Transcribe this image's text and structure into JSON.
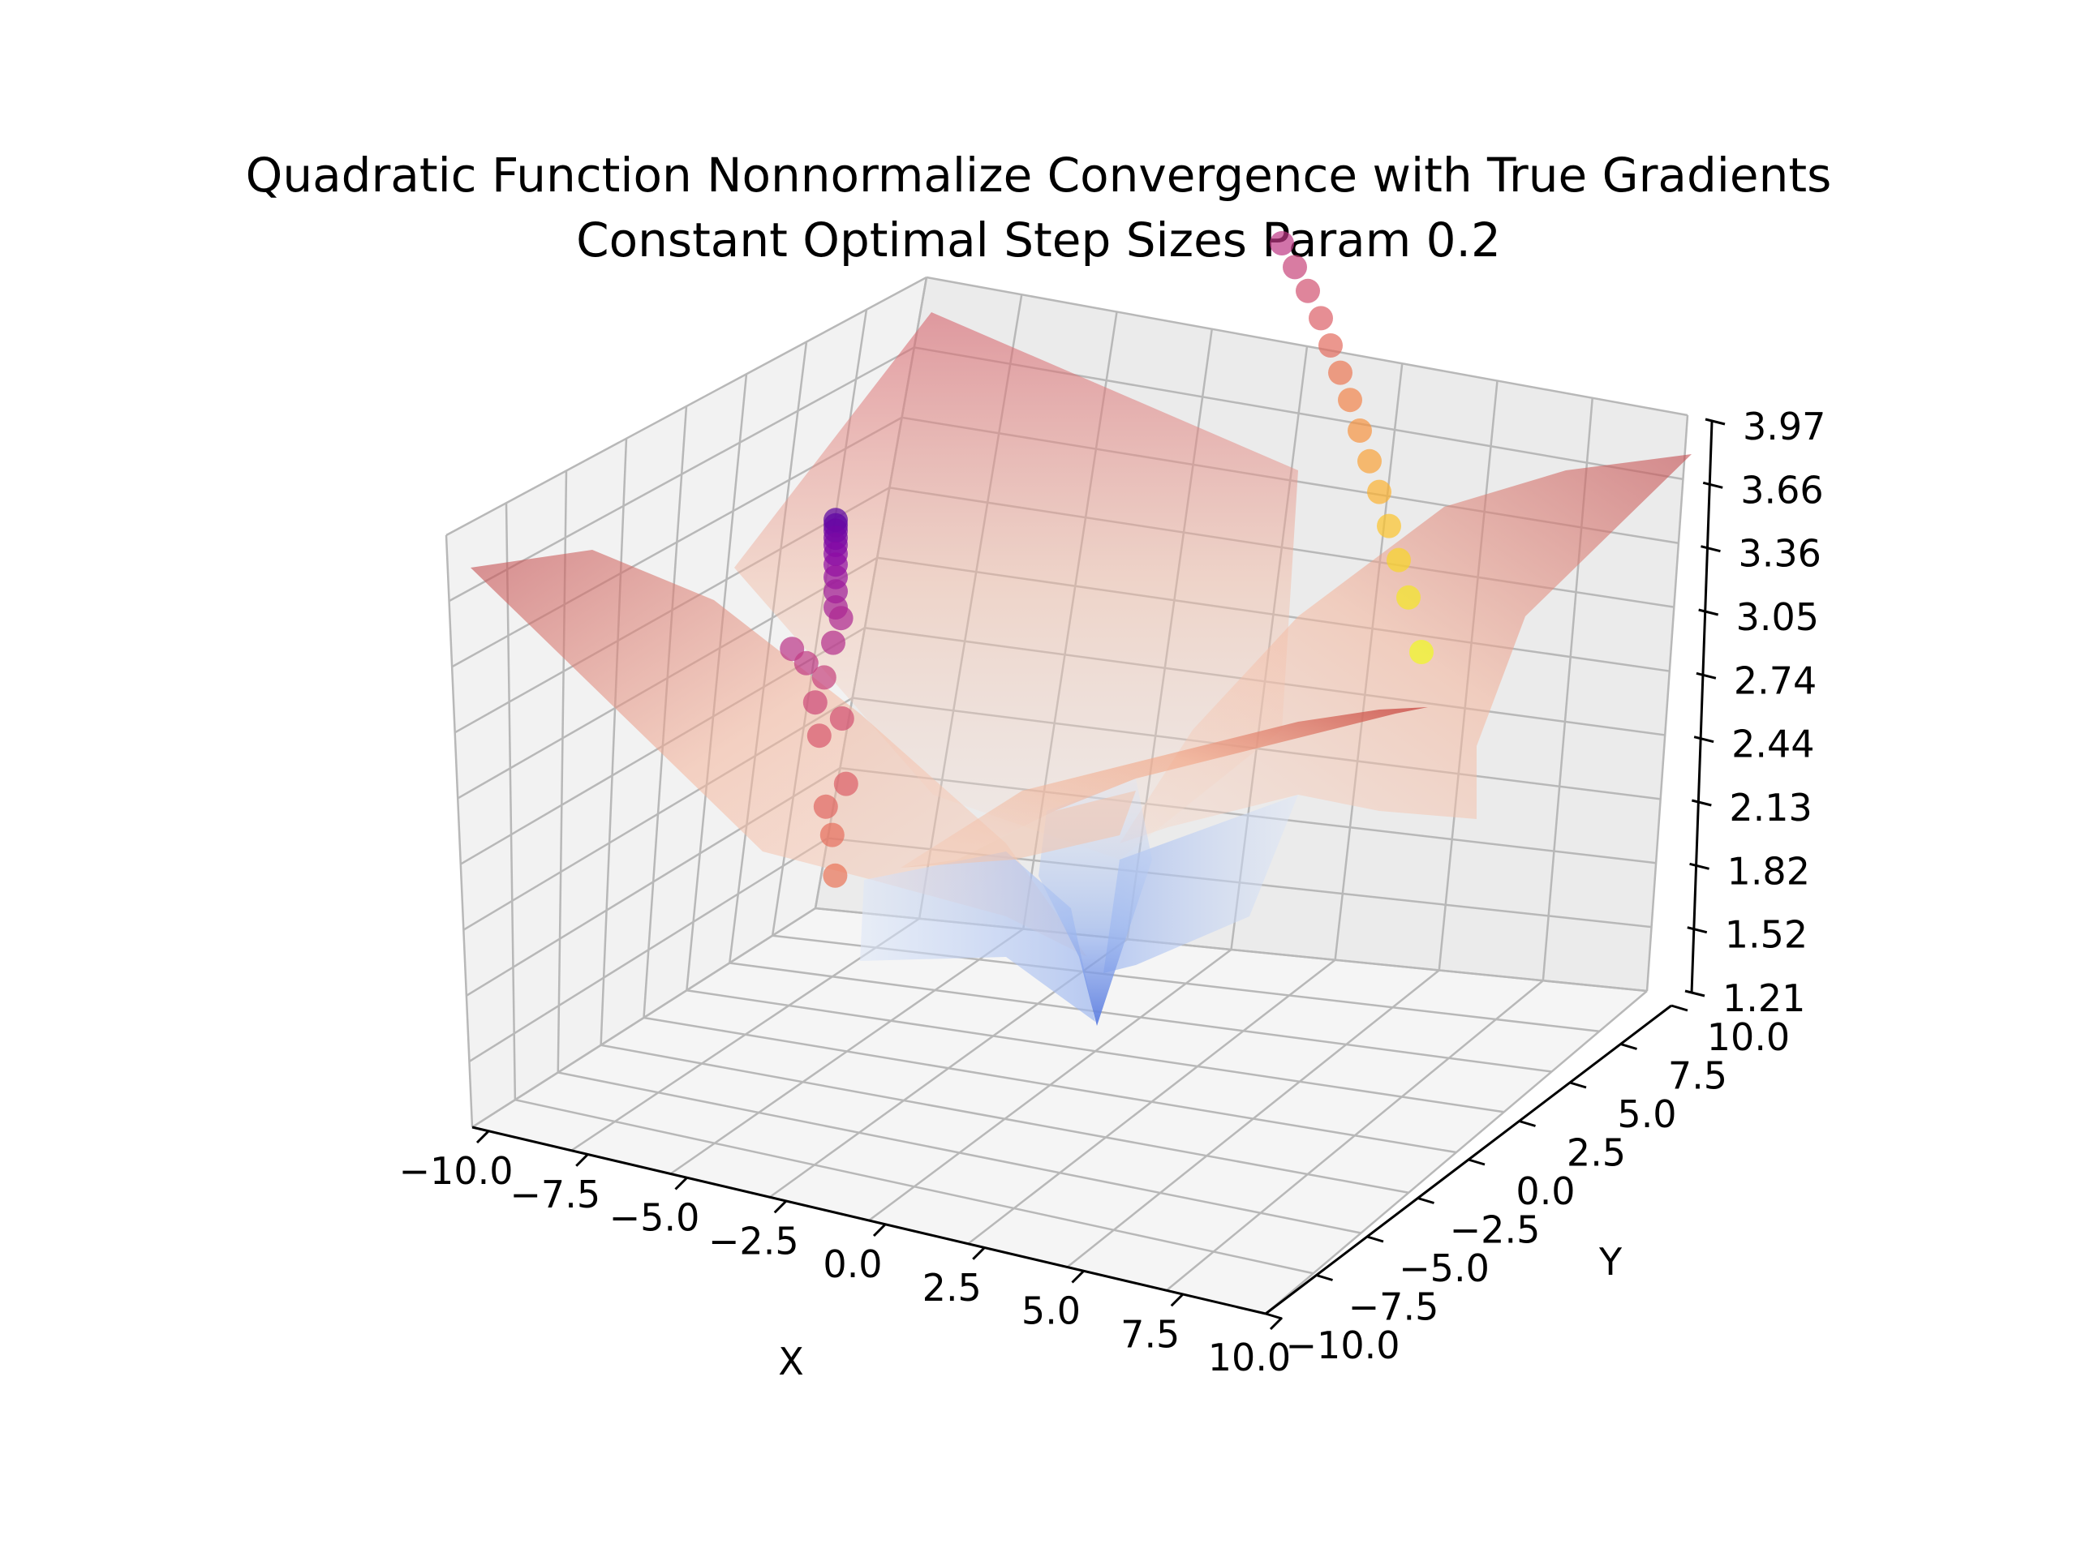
{
  "chart_data": {
    "type": "surface3d",
    "title_lines": [
      "Quadratic Function Nonnormalize Convergence with True Gradients",
      "Constant Optimal Step Sizes Param 0.2"
    ],
    "xlabel": "X",
    "ylabel": "Y",
    "zlabel": "",
    "xlim": [
      -10,
      10
    ],
    "ylim": [
      -10,
      10
    ],
    "zlim": [
      1.21,
      3.97
    ],
    "x_ticks": [
      "−10.0",
      "−7.5",
      "−5.0",
      "−2.5",
      "0.0",
      "2.5",
      "5.0",
      "7.5",
      "10.0"
    ],
    "y_ticks": [
      "−10.0",
      "−7.5",
      "−5.0",
      "−2.5",
      "0.0",
      "2.5",
      "5.0",
      "7.5",
      "10.0"
    ],
    "z_ticks": [
      "1.21",
      "1.52",
      "1.82",
      "2.13",
      "2.44",
      "2.74",
      "3.05",
      "3.36",
      "3.66",
      "3.97"
    ],
    "surface": {
      "description_colormap": "coolwarm",
      "min_z": 1.21,
      "max_z": 3.97
    },
    "trajectories": [
      {
        "colormap": "plasma",
        "points": [
          {
            "x": -3.9,
            "y": 4.0,
            "z": 3.75
          },
          {
            "x": -3.9,
            "y": 4.0,
            "z": 3.72
          },
          {
            "x": -3.9,
            "y": 4.0,
            "z": 3.69
          },
          {
            "x": -3.9,
            "y": 4.0,
            "z": 3.65
          },
          {
            "x": -3.9,
            "y": 4.0,
            "z": 3.61
          },
          {
            "x": -3.9,
            "y": 4.0,
            "z": 3.56
          },
          {
            "x": -3.9,
            "y": 4.0,
            "z": 3.5
          },
          {
            "x": -3.9,
            "y": 4.0,
            "z": 3.43
          },
          {
            "x": -3.9,
            "y": 4.0,
            "z": 3.35
          },
          {
            "x": -3.9,
            "y": 4.0,
            "z": 3.26
          },
          {
            "x": -3.6,
            "y": 4.0,
            "z": 3.2
          },
          {
            "x": -3.9,
            "y": 3.5,
            "z": 3.08
          },
          {
            "x": -5.8,
            "y": 2.0,
            "z": 3.1
          },
          {
            "x": -5.0,
            "y": 2.0,
            "z": 3.02
          },
          {
            "x": -4.0,
            "y": 2.0,
            "z": 2.94
          },
          {
            "x": -4.5,
            "y": 2.0,
            "z": 2.8
          },
          {
            "x": -3.0,
            "y": 2.0,
            "z": 2.71
          },
          {
            "x": -4.0,
            "y": 1.0,
            "z": 2.65
          },
          {
            "x": -2.5,
            "y": 1.0,
            "z": 2.38
          },
          {
            "x": -3.5,
            "y": 0.5,
            "z": 2.27
          },
          {
            "x": -3.0,
            "y": 0.0,
            "z": 2.13
          },
          {
            "x": -2.7,
            "y": -0.5,
            "z": 1.92
          }
        ]
      },
      {
        "colormap": "plasma",
        "points": [
          {
            "x": 3.5,
            "y": 9.5,
            "z": 5.0
          },
          {
            "x": 3.9,
            "y": 9.5,
            "z": 4.93
          },
          {
            "x": 4.3,
            "y": 9.5,
            "z": 4.86
          },
          {
            "x": 4.7,
            "y": 9.5,
            "z": 4.78
          },
          {
            "x": 5.0,
            "y": 9.5,
            "z": 4.7
          },
          {
            "x": 5.3,
            "y": 9.5,
            "z": 4.62
          },
          {
            "x": 5.6,
            "y": 9.5,
            "z": 4.54
          },
          {
            "x": 5.9,
            "y": 9.5,
            "z": 4.45
          },
          {
            "x": 6.2,
            "y": 9.5,
            "z": 4.36
          },
          {
            "x": 6.5,
            "y": 9.5,
            "z": 4.27
          },
          {
            "x": 6.8,
            "y": 9.5,
            "z": 4.17
          },
          {
            "x": 7.1,
            "y": 9.5,
            "z": 4.07
          },
          {
            "x": 7.4,
            "y": 9.5,
            "z": 3.96
          },
          {
            "x": 7.8,
            "y": 9.5,
            "z": 3.8
          }
        ]
      }
    ]
  }
}
